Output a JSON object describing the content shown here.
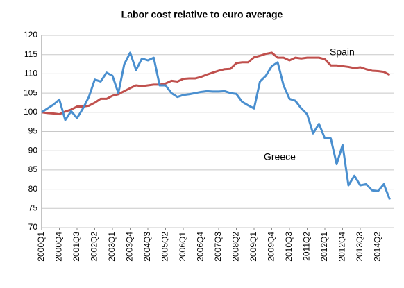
{
  "chart_data": {
    "type": "line",
    "title": "Labor cost relative to euro average",
    "categories": [
      "2000Q1",
      null,
      null,
      "2000Q4",
      null,
      null,
      "2001Q3",
      null,
      null,
      "2002Q2",
      null,
      null,
      "2003Q1",
      null,
      null,
      "2003Q4",
      null,
      null,
      "2004Q3",
      null,
      null,
      "2005Q2",
      null,
      null,
      "2006Q1",
      null,
      null,
      "2006Q4",
      null,
      null,
      "2007Q3",
      null,
      null,
      "2008Q2",
      null,
      null,
      "2009Q1",
      null,
      null,
      "2009Q4",
      null,
      null,
      "2010Q3",
      null,
      null,
      "2011Q2",
      null,
      null,
      "2012Q1",
      null,
      null,
      "2012Q4",
      null,
      null,
      "2013Q3",
      null,
      null,
      "2014Q2",
      null,
      null
    ],
    "series": [
      {
        "name": "Spain",
        "color": "#c0504d",
        "values": [
          100,
          99.8,
          99.7,
          99.5,
          100.2,
          100.7,
          101.5,
          101.5,
          101.7,
          102.5,
          103.5,
          103.5,
          104.3,
          104.7,
          105.5,
          106.3,
          107,
          106.8,
          107,
          107.2,
          107.2,
          107.5,
          108.2,
          108,
          108.7,
          108.8,
          108.8,
          109.2,
          109.8,
          110.3,
          110.8,
          111.2,
          111.3,
          112.8,
          113,
          113,
          114.3,
          114.7,
          115.2,
          115.5,
          114.2,
          114.2,
          113.5,
          114.2,
          114,
          114.2,
          114.2,
          114.2,
          113.8,
          112.2,
          112.2,
          112,
          111.8,
          111.5,
          111.7,
          111.2,
          110.8,
          110.7,
          110.5,
          109.7
        ]
      },
      {
        "name": "Greece",
        "color": "#4a8fcf",
        "values": [
          100,
          101,
          102,
          103.3,
          98,
          100.3,
          98.5,
          101,
          104,
          108.5,
          108,
          110.3,
          109.5,
          105,
          112.5,
          115.5,
          111,
          114,
          113.5,
          114.2,
          107,
          107,
          105,
          104,
          104.5,
          104.7,
          105,
          105.3,
          105.5,
          105.4,
          105.4,
          105.5,
          105,
          104.8,
          102.7,
          101.8,
          101,
          108,
          109.5,
          112,
          113,
          107,
          103.5,
          103,
          101,
          99.5,
          94.5,
          97,
          93.2,
          93.2,
          86.5,
          91.5,
          81,
          83.5,
          81,
          81.3,
          79.7,
          79.5,
          81.3,
          77.3
        ]
      }
    ],
    "ylim": [
      70,
      120
    ],
    "yticks": [
      70,
      75,
      80,
      85,
      90,
      95,
      100,
      105,
      110,
      115,
      120
    ],
    "grid": true
  }
}
